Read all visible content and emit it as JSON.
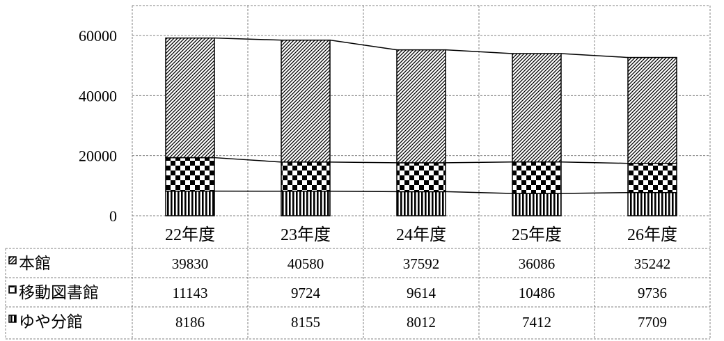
{
  "chart_data": {
    "type": "bar",
    "stacked": true,
    "categories": [
      "22年度",
      "23年度",
      "24年度",
      "25年度",
      "26年度"
    ],
    "series": [
      {
        "name": "ゆや分館",
        "values": [
          8186,
          8155,
          8012,
          7412,
          7709
        ],
        "pattern": "vertical-stripes"
      },
      {
        "name": "移動図書館",
        "values": [
          11143,
          9724,
          9614,
          10486,
          9736
        ],
        "pattern": "checkerboard"
      },
      {
        "name": "本館",
        "values": [
          39830,
          40580,
          37592,
          36086,
          35242
        ],
        "pattern": "diagonal-hatch"
      }
    ],
    "table_row_order": [
      "本館",
      "移動図書館",
      "ゆや分館"
    ],
    "yticks": [
      "0",
      "20000",
      "40000",
      "60000"
    ],
    "ylim": [
      0,
      70000
    ],
    "grid": true,
    "series_lines": true,
    "data_table": true,
    "colors": {
      "line": "#000000",
      "grid": "#808080",
      "fill": "#ffffff"
    }
  }
}
